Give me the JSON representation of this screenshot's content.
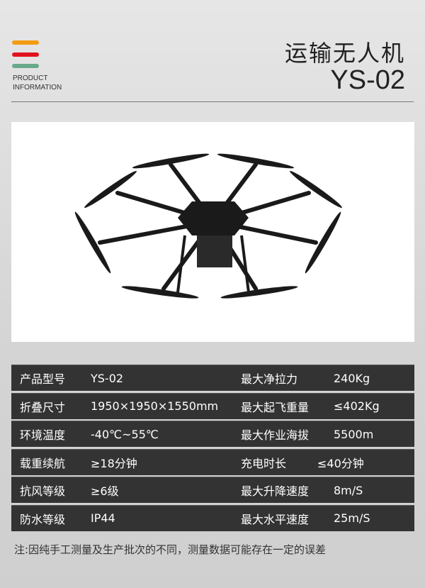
{
  "header": {
    "badge_line1": "PRODUCT",
    "badge_line2": "INFORMATION",
    "title": "运输无人机",
    "model": "YS-02",
    "bar_colors": [
      "#f39c12",
      "#e0141e",
      "#6aa88a"
    ]
  },
  "product_image": {
    "icon": "octocopter-drone-image"
  },
  "specs": [
    {
      "label": "产品型号",
      "value": "YS-02",
      "label2": "最大净拉力",
      "value2": "240Kg"
    },
    {
      "label": "折叠尺寸",
      "value": "1950×1950×1550mm",
      "label2": "最大起飞重量",
      "value2": "≤402Kg"
    },
    {
      "label": "环境温度",
      "value": "-40℃~55℃",
      "label2": "最大作业海拔",
      "value2": "5500m"
    },
    {
      "label": "载重续航",
      "value": "≥18分钟",
      "label2": "充电时长",
      "value2": "≤40分钟"
    },
    {
      "label": "抗风等级",
      "value": "≥6级",
      "label2": "最大升降速度",
      "value2": "8m/S"
    },
    {
      "label": "防水等级",
      "value": "IP44",
      "label2": "最大水平速度",
      "value2": "25m/S"
    }
  ],
  "footnote": "注:因纯手工测量及生产批次的不同，测量数据可能存在一定的误差"
}
